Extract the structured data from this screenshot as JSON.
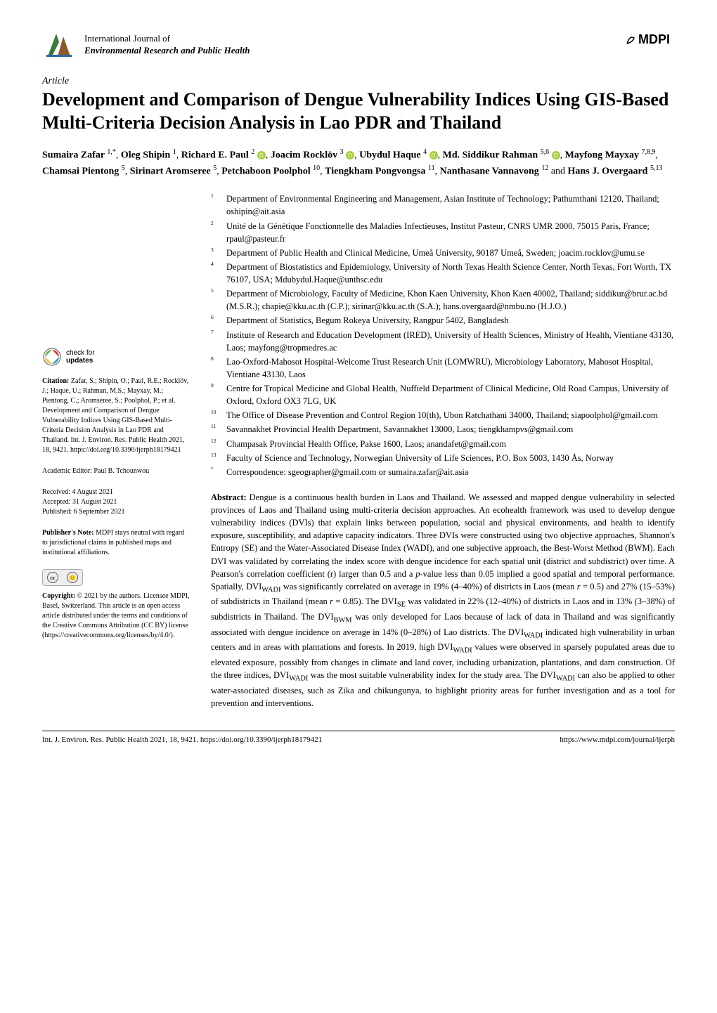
{
  "journal": {
    "line1": "International Journal of",
    "line2": "Environmental Research and Public Health",
    "publisher_logo_text": "MDPI"
  },
  "article_type": "Article",
  "title": "Development and Comparison of Dengue Vulnerability Indices Using GIS-Based Multi-Criteria Decision Analysis in Lao PDR and Thailand",
  "authors_html_parts": [
    {
      "name": "Sumaira Zafar",
      "sup": "1,*"
    },
    {
      "name": "Oleg Shipin",
      "sup": "1"
    },
    {
      "name": "Richard E. Paul",
      "sup": "2",
      "orcid": true
    },
    {
      "name": "Joacim Rocklöv",
      "sup": "3",
      "orcid": true
    },
    {
      "name": "Ubydul Haque",
      "sup": "4",
      "orcid": true
    },
    {
      "name": "Md. Siddikur Rahman",
      "sup": "5,6",
      "orcid": true
    },
    {
      "name": "Mayfong Mayxay",
      "sup": "7,8,9"
    },
    {
      "name": "Chamsai Pientong",
      "sup": "5"
    },
    {
      "name": "Sirinart Aromseree",
      "sup": "5"
    },
    {
      "name": "Petchaboon Poolphol",
      "sup": "10"
    },
    {
      "name": "Tiengkham Pongvongsa",
      "sup": "11"
    },
    {
      "name": "Nanthasane Vannavong",
      "sup": "12"
    },
    {
      "name": "Hans J. Overgaard",
      "sup": "5,13"
    }
  ],
  "affiliations": [
    {
      "n": "1",
      "t": "Department of Environmental Engineering and Management, Asian Institute of Technology; Pathumthani 12120, Thailand; oshipin@ait.asia"
    },
    {
      "n": "2",
      "t": "Unité de la Génétique Fonctionnelle des Maladies Infectieuses, Institut Pasteur, CNRS UMR 2000, 75015 Paris, France; rpaul@pasteur.fr"
    },
    {
      "n": "3",
      "t": "Department of Public Health and Clinical Medicine, Umeå University, 90187 Umeå, Sweden; joacim.rocklov@umu.se"
    },
    {
      "n": "4",
      "t": "Department of Biostatistics and Epidemiology, University of North Texas Health Science Center, North Texas, Fort Worth, TX 76107, USA; Mdubydul.Haque@unthsc.edu"
    },
    {
      "n": "5",
      "t": "Department of Microbiology, Faculty of Medicine, Khon Kaen University, Khon Kaen 40002, Thailand; siddikur@brur.ac.bd (M.S.R.); chapie@kku.ac.th (C.P.); sirinar@kku.ac.th (S.A.); hans.overgaard@nmbu.no (H.J.O.)"
    },
    {
      "n": "6",
      "t": "Department of Statistics, Begum Rokeya University, Rangpur 5402, Bangladesh"
    },
    {
      "n": "7",
      "t": "Institute of Research and Education Development (IRED), University of Health Sciences, Ministry of Health, Vientiane 43130, Laos; mayfong@tropmedres.ac"
    },
    {
      "n": "8",
      "t": "Lao-Oxford-Mahosot Hospital-Welcome Trust Research Unit (LOMWRU), Microbiology Laboratory, Mahosot Hospital, Vientiane 43130, Laos"
    },
    {
      "n": "9",
      "t": "Centre for Tropical Medicine and Global Health, Nuffield Department of Clinical Medicine, Old Road Campus, University of Oxford, Oxford OX3 7LG, UK"
    },
    {
      "n": "10",
      "t": "The Office of Disease Prevention and Control Region 10(th), Ubon Ratchathani 34000, Thailand; siapoolphol@gmail.com"
    },
    {
      "n": "11",
      "t": "Savannakhet Provincial Health Department, Savannakhet 13000, Laos; tiengkhampvs@gmail.com"
    },
    {
      "n": "12",
      "t": "Champasak Provincial Health Office, Pakse 1600, Laos; anandafet@gmail.com"
    },
    {
      "n": "13",
      "t": "Faculty of Science and Technology, Norwegian University of Life Sciences, P.O. Box 5003, 1430 Ås, Norway"
    },
    {
      "n": "*",
      "t": "Correspondence: sgeographer@gmail.com or sumaira.zafar@ait.asia"
    }
  ],
  "sidebar": {
    "check_updates": "check for updates",
    "citation_label": "Citation:",
    "citation": "Zafar, S.; Shipin, O.; Paul, R.E.; Rocklöv, J.; Haque, U.; Rahman, M.S.; Mayxay, M.; Pientong, C.; Aromseree, S.; Poolphol, P.; et al. Development and Comparison of Dengue Vulnerability Indices Using GIS-Based Multi-Criteria Decision Analysis in Lao PDR and Thailand. Int. J. Environ. Res. Public Health 2021, 18, 9421. https://doi.org/10.3390/ijerph18179421",
    "editor_label": "Academic Editor:",
    "editor": "Paul B. Tchounwou",
    "received_label": "Received:",
    "received": "4 August 2021",
    "accepted_label": "Accepted:",
    "accepted": "31 August 2021",
    "published_label": "Published:",
    "published": "6 September 2021",
    "pubnote_label": "Publisher's Note:",
    "pubnote": "MDPI stays neutral with regard to jurisdictional claims in published maps and institutional affiliations.",
    "copyright_label": "Copyright:",
    "copyright": "© 2021 by the authors. Licensee MDPI, Basel, Switzerland. This article is an open access article distributed under the terms and conditions of the Creative Commons Attribution (CC BY) license (https://creativecommons.org/licenses/by/4.0/)."
  },
  "abstract_label": "Abstract:",
  "abstract": "Dengue is a continuous health burden in Laos and Thailand. We assessed and mapped dengue vulnerability in selected provinces of Laos and Thailand using multi-criteria decision approaches. An ecohealth framework was used to develop dengue vulnerability indices (DVIs) that explain links between population, social and physical environments, and health to identify exposure, susceptibility, and adaptive capacity indicators. Three DVIs were constructed using two objective approaches, Shannon's Entropy (SE) and the Water-Associated Disease Index (WADI), and one subjective approach, the Best-Worst Method (BWM). Each DVI was validated by correlating the index score with dengue incidence for each spatial unit (district and subdistrict) over time. A Pearson's correlation coefficient (r) larger than 0.5 and a p-value less than 0.05 implied a good spatial and temporal performance. Spatially, DVI_WADI was significantly correlated on average in 19% (4–40%) of districts in Laos (mean r = 0.5) and 27% (15–53%) of subdistricts in Thailand (mean r = 0.85). The DVI_SE was validated in 22% (12–40%) of districts in Laos and in 13% (3–38%) of subdistricts in Thailand. The DVI_BWM was only developed for Laos because of lack of data in Thailand and was significantly associated with dengue incidence on average in 14% (0–28%) of Lao districts. The DVI_WADI indicated high vulnerability in urban centers and in areas with plantations and forests. In 2019, high DVI_WADI values were observed in sparsely populated areas due to elevated exposure, possibly from changes in climate and land cover, including urbanization, plantations, and dam construction. Of the three indices, DVI_WADI was the most suitable vulnerability index for the study area. The DVI_WADI can also be applied to other water-associated diseases, such as Zika and chikungunya, to highlight priority areas for further investigation and as a tool for prevention and interventions.",
  "footer": {
    "left": "Int. J. Environ. Res. Public Health 2021, 18, 9421. https://doi.org/10.3390/ijerph18179421",
    "right": "https://www.mdpi.com/journal/ijerph"
  },
  "colors": {
    "orcid": "#a6ce39",
    "text": "#000000",
    "bg": "#ffffff"
  }
}
